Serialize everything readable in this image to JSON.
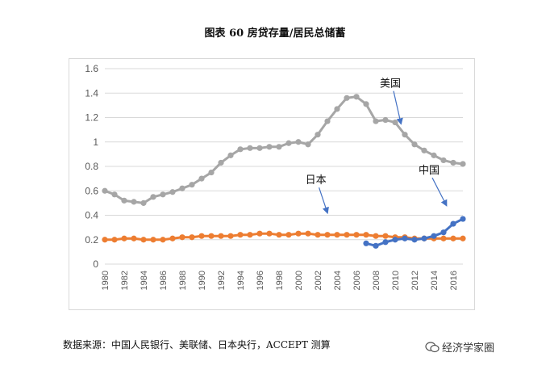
{
  "figure": {
    "title": "图表 60 房贷存量/居民总储蓄",
    "source": "数据来源：中国人民银行、美联储、日本央行，ACCEPT 测算",
    "watermark": "经济学家圈"
  },
  "colors": {
    "us": "#a6a6a6",
    "japan": "#ed7d31",
    "china": "#4472c4",
    "arrow": "#4472c4",
    "grid": "#d9d9d9"
  },
  "chart_data": {
    "type": "line",
    "title": "图表 60 房贷存量/居民总储蓄",
    "xlabel": "",
    "ylabel": "",
    "x": [
      1980,
      1981,
      1982,
      1983,
      1984,
      1985,
      1986,
      1987,
      1988,
      1989,
      1990,
      1991,
      1992,
      1993,
      1994,
      1995,
      1996,
      1997,
      1998,
      1999,
      2000,
      2001,
      2002,
      2003,
      2004,
      2005,
      2006,
      2007,
      2008,
      2009,
      2010,
      2011,
      2012,
      2013,
      2014,
      2015,
      2016,
      2017
    ],
    "x_ticks": [
      "1980",
      "1982",
      "1984",
      "1986",
      "1988",
      "1990",
      "1992",
      "1994",
      "1996",
      "1998",
      "2000",
      "2002",
      "2004",
      "2006",
      "2008",
      "2010",
      "2012",
      "2014",
      "2016"
    ],
    "y_ticks": [
      "0",
      "0.2",
      "0.4",
      "0.6",
      "0.8",
      "1",
      "1.2",
      "1.4",
      "1.6"
    ],
    "ylim": [
      0,
      1.6
    ],
    "grid": "horizontal",
    "series": [
      {
        "name": "美国",
        "values": [
          0.6,
          0.57,
          0.52,
          0.51,
          0.5,
          0.55,
          0.57,
          0.59,
          0.62,
          0.65,
          0.7,
          0.75,
          0.83,
          0.89,
          0.94,
          0.95,
          0.95,
          0.96,
          0.96,
          0.99,
          1.0,
          0.98,
          1.06,
          1.17,
          1.27,
          1.36,
          1.37,
          1.31,
          1.17,
          1.18,
          1.16,
          1.06,
          0.98,
          0.93,
          0.89,
          0.85,
          0.83,
          0.82
        ]
      },
      {
        "name": "日本",
        "values": [
          0.2,
          0.2,
          0.21,
          0.21,
          0.2,
          0.2,
          0.2,
          0.21,
          0.22,
          0.22,
          0.23,
          0.23,
          0.23,
          0.23,
          0.24,
          0.24,
          0.25,
          0.25,
          0.24,
          0.24,
          0.25,
          0.25,
          0.24,
          0.24,
          0.24,
          0.24,
          0.24,
          0.24,
          0.23,
          0.23,
          0.22,
          0.22,
          0.21,
          0.21,
          0.21,
          0.21,
          0.21,
          0.21
        ]
      },
      {
        "name": "中国",
        "values": [
          null,
          null,
          null,
          null,
          null,
          null,
          null,
          null,
          null,
          null,
          null,
          null,
          null,
          null,
          null,
          null,
          null,
          null,
          null,
          null,
          null,
          null,
          null,
          null,
          null,
          null,
          null,
          0.17,
          0.15,
          0.18,
          0.2,
          0.21,
          0.2,
          0.21,
          0.23,
          0.26,
          0.33,
          0.37
        ]
      }
    ],
    "annotations": [
      {
        "text": "美国",
        "series": "美国",
        "label_x": 2009.5,
        "label_y": 1.45,
        "arrow_to": [
          2010.6,
          1.15
        ]
      },
      {
        "text": "日本",
        "series": "日本",
        "label_x": 2001.8,
        "label_y": 0.66,
        "arrow_to": [
          2003.0,
          0.42
        ]
      },
      {
        "text": "中国",
        "series": "中国",
        "label_x": 2013.5,
        "label_y": 0.74,
        "arrow_to": [
          2015.3,
          0.48
        ]
      }
    ]
  }
}
